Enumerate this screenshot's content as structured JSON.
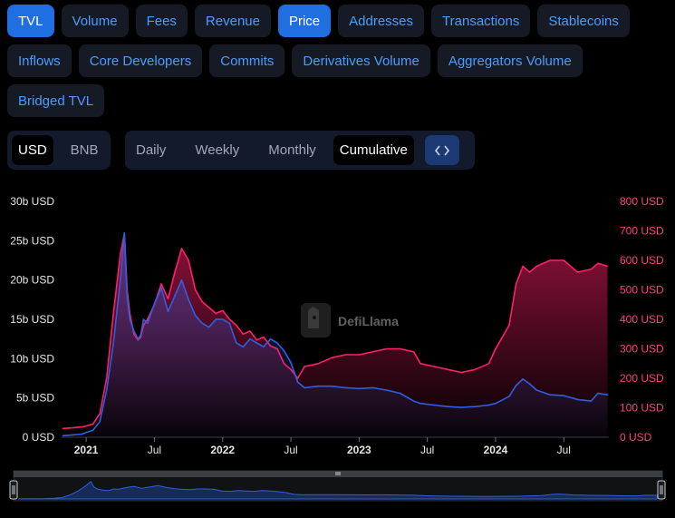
{
  "metric_tabs": {
    "row1": [
      {
        "label": "TVL",
        "active": true
      },
      {
        "label": "Volume",
        "active": false
      },
      {
        "label": "Fees",
        "active": false
      },
      {
        "label": "Revenue",
        "active": false
      },
      {
        "label": "Price",
        "active": true
      },
      {
        "label": "Addresses",
        "active": false
      },
      {
        "label": "Transactions",
        "active": false
      },
      {
        "label": "Stablecoins",
        "active": false
      }
    ],
    "row2": [
      {
        "label": "Inflows",
        "active": false
      },
      {
        "label": "Core Developers",
        "active": false
      },
      {
        "label": "Commits",
        "active": false
      },
      {
        "label": "Derivatives Volume",
        "active": false
      },
      {
        "label": "Aggregators Volume",
        "active": false
      }
    ],
    "row3": [
      {
        "label": "Bridged TVL",
        "active": false
      }
    ]
  },
  "denomination": {
    "options": [
      "USD",
      "BNB"
    ],
    "selected": "USD"
  },
  "period": {
    "options": [
      "Daily",
      "Weekly",
      "Monthly",
      "Cumulative"
    ],
    "selected": "Cumulative",
    "embed_icon": "code-brackets-icon"
  },
  "watermark": "DefiLlama",
  "colors": {
    "tvl_line": "#2f5fe0",
    "price_line": "#ff1f6a",
    "active_tab": "#1f6fe0",
    "tab_text": "#4a9dff"
  },
  "chart_data": {
    "type": "line",
    "x_tick_labels": [
      "2021",
      "Jul",
      "2022",
      "Jul",
      "2023",
      "Jul",
      "2024",
      "Jul"
    ],
    "x_tick_bold": [
      true,
      false,
      true,
      false,
      true,
      false,
      true,
      false
    ],
    "x_ticks": [
      2021.0,
      2021.5,
      2022.0,
      2022.5,
      2023.0,
      2023.5,
      2024.0,
      2024.5
    ],
    "xlim": [
      2020.82,
      2024.83
    ],
    "y_left": {
      "ticks": [
        "0 USD",
        "5b USD",
        "10b USD",
        "15b USD",
        "20b USD",
        "25b USD",
        "30b USD"
      ],
      "lim": [
        0,
        30
      ]
    },
    "y_right": {
      "ticks": [
        "0 USD",
        "100 USD",
        "200 USD",
        "300 USD",
        "400 USD",
        "500 USD",
        "600 USD",
        "700 USD",
        "800 USD"
      ],
      "lim": [
        0,
        800
      ]
    },
    "series": [
      {
        "axis": "left",
        "unit": "b USD",
        "x": [
          2020.83,
          2020.9,
          2020.97,
          2021.0,
          2021.05,
          2021.1,
          2021.15,
          2021.2,
          2021.25,
          2021.28,
          2021.3,
          2021.32,
          2021.35,
          2021.38,
          2021.4,
          2021.42,
          2021.45,
          2021.5,
          2021.55,
          2021.6,
          2021.65,
          2021.7,
          2021.75,
          2021.8,
          2021.85,
          2021.9,
          2021.95,
          2022.0,
          2022.05,
          2022.1,
          2022.15,
          2022.2,
          2022.25,
          2022.3,
          2022.35,
          2022.4,
          2022.45,
          2022.5,
          2022.55,
          2022.6,
          2022.7,
          2022.8,
          2022.9,
          2023.0,
          2023.1,
          2023.2,
          2023.3,
          2023.4,
          2023.45,
          2023.55,
          2023.65,
          2023.75,
          2023.85,
          2023.95,
          2024.0,
          2024.1,
          2024.15,
          2024.2,
          2024.25,
          2024.3,
          2024.4,
          2024.5,
          2024.6,
          2024.7,
          2024.75,
          2024.82
        ],
        "values": [
          0.2,
          0.3,
          0.4,
          0.6,
          0.9,
          2.0,
          6.0,
          12.0,
          20.0,
          26.0,
          18.0,
          15.0,
          13.5,
          12.5,
          13.0,
          15.0,
          14.5,
          17.0,
          19.0,
          16.0,
          18.0,
          20.0,
          17.5,
          15.5,
          14.5,
          14.0,
          15.0,
          15.0,
          14.5,
          12.0,
          11.5,
          12.5,
          12.0,
          11.5,
          12.5,
          12.0,
          11.0,
          9.5,
          7.0,
          6.3,
          6.5,
          6.5,
          6.3,
          6.2,
          6.3,
          6.0,
          5.6,
          4.6,
          4.3,
          4.1,
          3.9,
          3.8,
          3.9,
          4.1,
          4.3,
          5.2,
          6.6,
          7.4,
          6.8,
          6.0,
          5.4,
          5.3,
          4.8,
          4.6,
          5.6,
          5.4
        ]
      },
      {
        "axis": "right",
        "unit": "USD",
        "x": [
          2020.83,
          2020.9,
          2020.97,
          2021.0,
          2021.05,
          2021.1,
          2021.15,
          2021.2,
          2021.25,
          2021.28,
          2021.3,
          2021.32,
          2021.35,
          2021.38,
          2021.4,
          2021.42,
          2021.45,
          2021.5,
          2021.55,
          2021.6,
          2021.65,
          2021.7,
          2021.75,
          2021.8,
          2021.85,
          2021.9,
          2021.95,
          2022.0,
          2022.05,
          2022.1,
          2022.15,
          2022.2,
          2022.25,
          2022.3,
          2022.35,
          2022.4,
          2022.45,
          2022.5,
          2022.55,
          2022.6,
          2022.7,
          2022.8,
          2022.9,
          2023.0,
          2023.1,
          2023.2,
          2023.3,
          2023.4,
          2023.45,
          2023.55,
          2023.65,
          2023.75,
          2023.85,
          2023.95,
          2024.0,
          2024.1,
          2024.15,
          2024.2,
          2024.25,
          2024.3,
          2024.4,
          2024.5,
          2024.6,
          2024.7,
          2024.75,
          2024.82
        ],
        "values": [
          30,
          32,
          35,
          38,
          45,
          80,
          200,
          420,
          620,
          690,
          500,
          420,
          350,
          330,
          340,
          380,
          400,
          450,
          520,
          470,
          560,
          640,
          600,
          500,
          460,
          440,
          420,
          430,
          400,
          380,
          350,
          360,
          330,
          340,
          310,
          300,
          250,
          230,
          200,
          240,
          250,
          270,
          280,
          280,
          290,
          300,
          300,
          290,
          250,
          240,
          230,
          220,
          230,
          250,
          300,
          380,
          520,
          580,
          560,
          580,
          600,
          600,
          560,
          570,
          590,
          580
        ]
      }
    ]
  }
}
